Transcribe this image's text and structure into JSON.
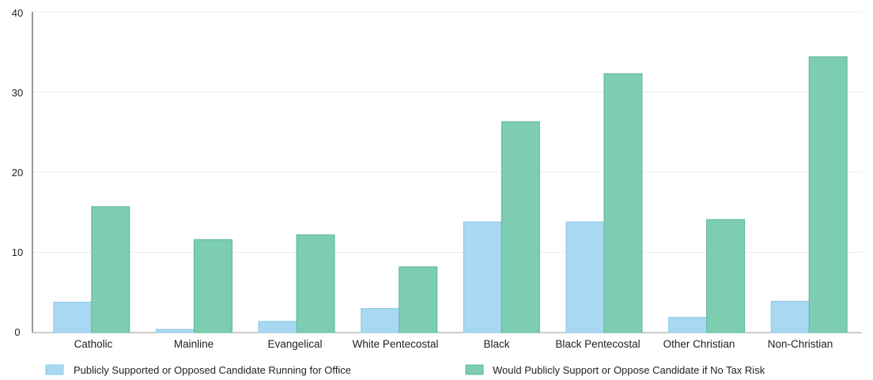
{
  "chart_data": {
    "type": "bar",
    "categories": [
      "Catholic",
      "Mainline",
      "Evangelical",
      "White Pentecostal",
      "Black",
      "Black Pentecostal",
      "Other Christian",
      "Non-Christian"
    ],
    "series": [
      {
        "name": "Publicly Supported or Opposed Candidate Running for Office",
        "color": "#a8d8f2",
        "values": [
          3.8,
          0.4,
          1.4,
          3.0,
          13.8,
          13.8,
          1.9,
          3.9
        ]
      },
      {
        "name": "Would Publicly Support or Oppose Candidate if No Tax Risk",
        "color": "#7dcdb0",
        "values": [
          15.7,
          11.6,
          12.2,
          8.2,
          26.3,
          32.3,
          14.1,
          34.4
        ]
      }
    ],
    "y_ticks": [
      "0",
      "10",
      "20",
      "30",
      "40"
    ],
    "ylim": [
      0,
      40
    ],
    "grid": true,
    "legend_position": "bottom"
  }
}
